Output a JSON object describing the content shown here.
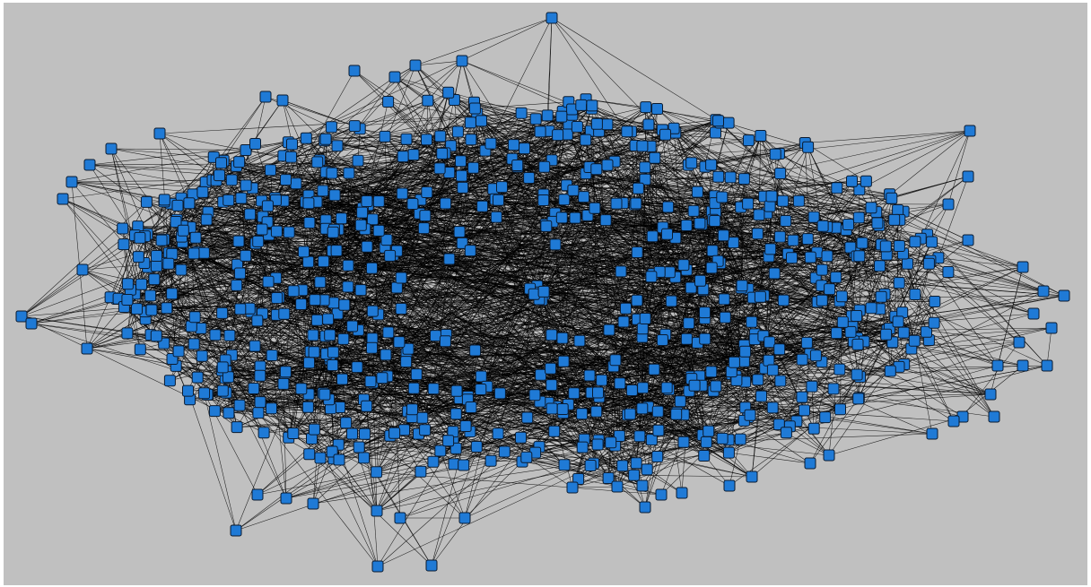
{
  "graph": {
    "node_shape": "rounded-square",
    "colors": {
      "background": "#c0c0c0",
      "frame": "#ffffff",
      "node_fill": "#1f7ad6",
      "node_stroke": "#0b1a2e",
      "edge": "#000000"
    }
  }
}
